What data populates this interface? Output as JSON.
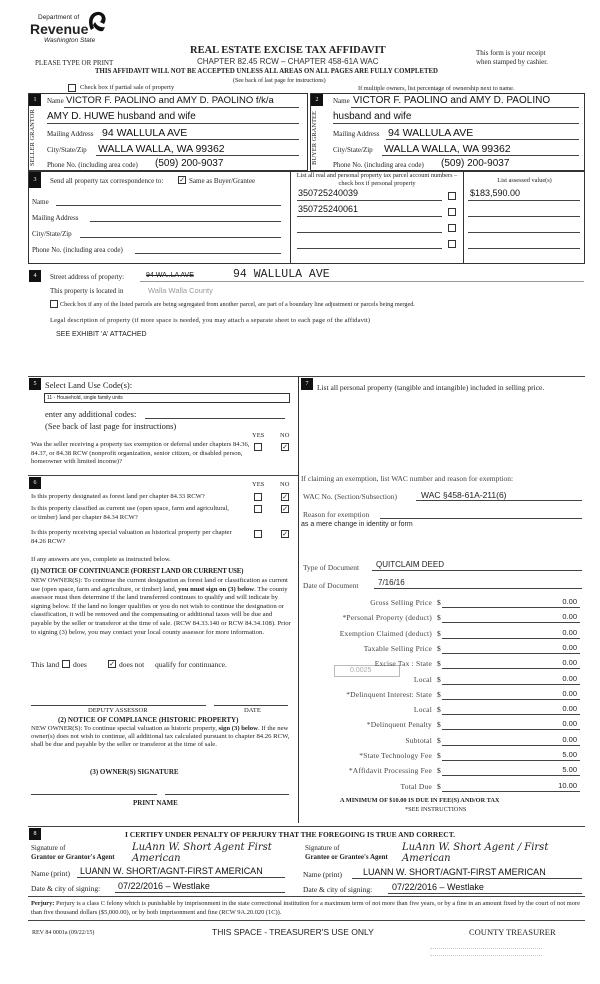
{
  "header": {
    "logo_dept": "Department of",
    "logo_name": "Revenue",
    "logo_state": "Washington State",
    "please": "PLEASE TYPE OR PRINT",
    "title": "REAL ESTATE EXCISE TAX AFFIDAVIT",
    "chapter": "CHAPTER 82.45 RCW – CHAPTER 458-61A WAC",
    "receipt1": "This form is your receipt",
    "receipt2": "when stamped by cashier.",
    "warning": "THIS AFFIDAVIT WILL NOT BE ACCEPTED UNLESS ALL AREAS ON ALL PAGES ARE FULLY COMPLETED",
    "see_back": "(See back of last page for instructions)",
    "partial_sale": "Check box if partial sale of property",
    "multiple_owners": "If multiple owners, list percentage of ownership next to name."
  },
  "seller": {
    "num": "1",
    "side": "SELLER GRANTOR",
    "name_label": "Name",
    "name1": "VICTOR F. PAOLINO and AMY D. PAOLINO f/k/a",
    "name2": "AMY D. HUWE husband and wife",
    "addr_label": "Mailing Address",
    "addr": "94 WALLULA AVE",
    "city_label": "City/State/Zip",
    "city": "WALLA WALLA, WA 99362",
    "phone_label": "Phone No. (including area code)",
    "phone": "(509) 200-9037"
  },
  "buyer": {
    "num": "2",
    "side": "BUYER GRANTEE",
    "name_label": "Name",
    "name1": "VICTOR F. PAOLINO and AMY D. PAOLINO",
    "name2": "husband and wife",
    "addr_label": "Mailing Address",
    "addr": "94 WALLULA AVE",
    "city_label": "City/State/Zip",
    "city": "WALLA WALLA, WA 99362",
    "phone_label": "Phone No. (including area code)",
    "phone": "(509) 200-9037"
  },
  "sec3": {
    "num": "3",
    "send": "Send all property tax correspondence to:",
    "same": "Same as Buyer/Grantee",
    "same_checked": true,
    "name": "Name",
    "addr": "Mailing Address",
    "city": "City/State/Zip",
    "phone": "Phone No. (including area code)",
    "parcel_header": "List all real and personal property tax parcel account numbers – check box if personal property",
    "assessed_header": "List assessed value(s)",
    "parcels": [
      "350725240039",
      "350725240061",
      "",
      ""
    ],
    "values": [
      "$183,590.00",
      "",
      "",
      ""
    ]
  },
  "sec4": {
    "num": "4",
    "street_label": "Street address of property:",
    "struck": "94 WA..LA AVE",
    "street": "94 WALLULA AVE",
    "located": "This property is located in",
    "county": "Walla Walla County",
    "segregate": "Check box if any of the listed parcels are being segregated from another parcel, are part of a boundary line adjustment or parcels being merged.",
    "legal": "Legal description of property (if more space is needed, you may attach a separate sheet to each page of the affidavit)",
    "legal_value": "SEE EXHIBIT 'A' ATTACHED"
  },
  "sec5": {
    "num": "5",
    "title": "Select Land Use Code(s):",
    "code": "11 - Household, single family units",
    "additional": "enter any additional codes:",
    "see_back": "(See back of last page for instructions)",
    "yes": "YES",
    "no": "NO",
    "question": "Was the seller receiving a property tax exemption or deferral under chapters 84.36, 84.37, or 84.38 RCW (nonprofit organization, senior citizen, or disabled person, homeowner with limited income)?",
    "answer": "NO"
  },
  "sec6": {
    "num": "6",
    "yes": "YES",
    "no": "NO",
    "q1": "Is this property designated as forest land per chapter 84.33 RCW?",
    "q2": "Is this property classified as current use (open space, farm and agricultural, or timber) land per chapter 84.34 RCW?",
    "q3": "Is this property receiving special valuation as historical property per chapter 84.26 RCW?",
    "answers": [
      "NO",
      "NO",
      "NO"
    ],
    "if_yes": "If any answers are yes, complete as instructed below.",
    "n1_title": "(1) NOTICE OF CONTINUANCE (FOREST LAND OR CURRENT USE)",
    "n1_a": "NEW OWNER(S): To continue the current designation as forest land or classification as current use (open space, farm and agriculture, or timber) land, ",
    "n1_bold": "you must sign on (3) below",
    "n1_b": ". The county assessor must then determine if the land transferred continues to qualify and will indicate by signing below. If the land no longer qualifies or you do not wish to continue the designation or classification, it will be removed and the compensating or additional taxes will be due and payable by the seller or transferor at the time of sale. (RCW 84.33.140 or RCW 84.34.108). Prior to signing (3) below, you may contact your local county assessor for more information.",
    "this_land": "This land",
    "does": "does",
    "does_not": "does not",
    "qualify": "qualify for continuance.",
    "does_not_checked": true,
    "deputy": "DEPUTY ASSESSOR",
    "date": "DATE",
    "n2_title": "(2) NOTICE OF COMPLIANCE (HISTORIC PROPERTY)",
    "n2_a": "NEW OWNER(S): To continue special valuation as historic property, ",
    "n2_bold": "sign (3) below",
    "n2_b": ". If the new owner(s) does not wish to continue, all additional tax calculated pursuant to chapter 84.26 RCW, shall be due and payable by the seller or transferor at the time of sale.",
    "n3_title": "(3) OWNER(S) SIGNATURE",
    "print_name": "PRINT NAME"
  },
  "sec7": {
    "num": "7",
    "list": "List all personal property (tangible and intangible) included in selling price.",
    "exemption": "If claiming an exemption, list WAC number and reason for exemption:",
    "wac_label": "WAC No. (Section/Subsection)",
    "wac": "WAC §458-61A-211(6)",
    "reason_label": "Reason for exemption",
    "reason": "as a mere change in identity or form",
    "doc_type_label": "Type of Document",
    "doc_type": "QUITCLAIM DEED",
    "doc_date_label": "Date of Document",
    "doc_date": "7/16/16",
    "local_rate": "0.0025",
    "fees": [
      {
        "label": "Gross Selling Price",
        "value": "0.00"
      },
      {
        "label": "*Personal Property (deduct)",
        "value": "0.00"
      },
      {
        "label": "Exemption Claimed (deduct)",
        "value": "0.00"
      },
      {
        "label": "Taxable Selling Price",
        "value": "0.00"
      },
      {
        "label": "Excise Tax : State",
        "value": "0.00"
      },
      {
        "label": "Local",
        "value": "0.00"
      },
      {
        "label": "*Delinquent Interest: State",
        "value": "0.00"
      },
      {
        "label": "Local",
        "value": "0.00"
      },
      {
        "label": "*Delinquent Penalty",
        "value": "0.00"
      },
      {
        "label": "Subtotal",
        "value": "0.00"
      },
      {
        "label": "*State Technology Fee",
        "value": "5.00"
      },
      {
        "label": "*Affidavit Processing Fee",
        "value": "5.00"
      },
      {
        "label": "Total Due",
        "value": "10.00"
      }
    ],
    "currency": "$",
    "minimum": "A MINIMUM OF $10.00 IS DUE IN FEE(S) AND/OR TAX",
    "see_instr": "*SEE INSTRUCTIONS"
  },
  "sec8": {
    "num": "8",
    "certify": "I CERTIFY UNDER PENALTY OF PERJURY THAT THE FOREGOING IS TRUE AND CORRECT.",
    "sig_label1": "Signature of",
    "sig_label2": "Grantor or Grantor's Agent",
    "sig_label3": "Grantee or Grantee's Agent",
    "sig_left": "LuAnn W. Short Agent First American",
    "sig_right": "LuAnn W. Short Agent / First American",
    "name_label": "Name (print)",
    "name_left": "LUANN W. SHORT/AGNT-FIRST AMERICAN",
    "name_right": "LUANN W. SHORT/AGNT-FIRST AMERICAN",
    "date_label": "Date & city of signing:",
    "date_left": "07/22/2016 – Westlake",
    "date_right": "07/22/2016 – Westlake"
  },
  "footer": {
    "perjury_bold": "Perjury:",
    "perjury": " Perjury is a class C felony which is punishable by imprisonment in the state correctional institution for a maximum term of not more than five years, or by a fine in an amount fixed by the court of not more than five thousand dollars ($5,000.00), or by both imprisonment and fine (RCW 9A.20.020 (1C)).",
    "rev": "REV 84 0001a (09/22/15)",
    "treasurer_space": "THIS SPACE - TREASURER'S USE ONLY",
    "county_treasurer": "COUNTY TREASURER"
  }
}
